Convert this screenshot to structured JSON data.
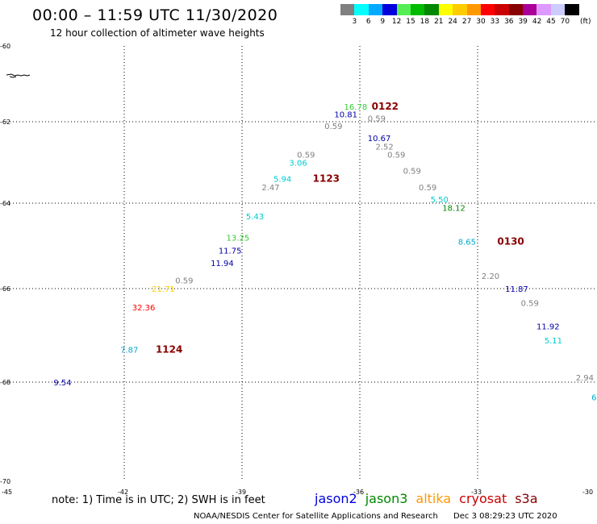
{
  "header": {
    "title": "00:00 – 11:59 UTC 11/30/2020",
    "subtitle": "12 hour collection of altimeter wave heights"
  },
  "legend": {
    "colors": [
      "#808080",
      "#00ffff",
      "#00aaff",
      "#0000dd",
      "#55ee55",
      "#00bb00",
      "#008800",
      "#ffff00",
      "#ffcc00",
      "#ff9900",
      "#ff0000",
      "#cc0000",
      "#880000",
      "#aa0099",
      "#dd99ff",
      "#ccccff",
      "#000000"
    ],
    "ticks": [
      "3",
      "6",
      "9",
      "12",
      "15",
      "18",
      "21",
      "24",
      "27",
      "30",
      "33",
      "36",
      "39",
      "42",
      "45",
      "70"
    ],
    "unit": "(ft)"
  },
  "map": {
    "lon_ticks": [
      "-45",
      "-42",
      "-39",
      "-36",
      "-33",
      "-30"
    ],
    "lat_ticks": [
      "-60",
      "-62",
      "-64",
      "-66",
      "-68",
      "-70"
    ],
    "points": [
      {
        "text": "16.78",
        "color": "#33cc33",
        "lon": -36.4,
        "lat": -61.6
      },
      {
        "text": "0122",
        "color": "#880000",
        "lon": -35.7,
        "lat": -61.6,
        "bold": true
      },
      {
        "text": "10.81",
        "color": "#0000aa",
        "lon": -36.65,
        "lat": -61.8
      },
      {
        "text": "0.59",
        "color": "#808080",
        "lon": -35.8,
        "lat": -61.9
      },
      {
        "text": "0.59",
        "color": "#808080",
        "lon": -36.9,
        "lat": -62.1
      },
      {
        "text": "10.67",
        "color": "#0000aa",
        "lon": -35.8,
        "lat": -62.4
      },
      {
        "text": "2.52",
        "color": "#808080",
        "lon": -35.6,
        "lat": -62.6
      },
      {
        "text": "0.59",
        "color": "#808080",
        "lon": -37.6,
        "lat": -62.8
      },
      {
        "text": "0.59",
        "color": "#808080",
        "lon": -35.3,
        "lat": -62.8
      },
      {
        "text": "3.06",
        "color": "#00cccc",
        "lon": -37.8,
        "lat": -63.0
      },
      {
        "text": "0.59",
        "color": "#808080",
        "lon": -34.9,
        "lat": -63.2
      },
      {
        "text": "5.94",
        "color": "#00cccc",
        "lon": -38.2,
        "lat": -63.4
      },
      {
        "text": "1123",
        "color": "#880000",
        "lon": -37.2,
        "lat": -63.4,
        "bold": true
      },
      {
        "text": "2.47",
        "color": "#808080",
        "lon": -38.5,
        "lat": -63.6
      },
      {
        "text": "0.59",
        "color": "#808080",
        "lon": -34.5,
        "lat": -63.6
      },
      {
        "text": "5.50",
        "color": "#00cccc",
        "lon": -34.2,
        "lat": -63.9
      },
      {
        "text": "18.12",
        "color": "#008800",
        "lon": -33.9,
        "lat": -64.1
      },
      {
        "text": "5.43",
        "color": "#00cccc",
        "lon": -38.9,
        "lat": -64.3
      },
      {
        "text": "13.25",
        "color": "#33cc33",
        "lon": -39.4,
        "lat": -64.8
      },
      {
        "text": "8.65",
        "color": "#00aacc",
        "lon": -33.5,
        "lat": -64.9
      },
      {
        "text": "0130",
        "color": "#880000",
        "lon": -32.5,
        "lat": -64.9,
        "bold": true
      },
      {
        "text": "11.75",
        "color": "#0000aa",
        "lon": -39.6,
        "lat": -65.1
      },
      {
        "text": "11.94",
        "color": "#0000aa",
        "lon": -39.8,
        "lat": -65.4
      },
      {
        "text": "2.20",
        "color": "#808080",
        "lon": -32.9,
        "lat": -65.7
      },
      {
        "text": "0.59",
        "color": "#808080",
        "lon": -40.7,
        "lat": -65.8
      },
      {
        "text": "11.87",
        "color": "#0000aa",
        "lon": -32.3,
        "lat": -66.0
      },
      {
        "text": "21.71",
        "color": "#ffcc00",
        "lon": -41.3,
        "lat": -66.0
      },
      {
        "text": "0.59",
        "color": "#808080",
        "lon": -31.9,
        "lat": -66.3
      },
      {
        "text": "32.36",
        "color": "#ff0000",
        "lon": -41.8,
        "lat": -66.4
      },
      {
        "text": "11.92",
        "color": "#0000aa",
        "lon": -31.5,
        "lat": -66.8
      },
      {
        "text": "5.11",
        "color": "#00cccc",
        "lon": -31.3,
        "lat": -67.1
      },
      {
        "text": "7.87",
        "color": "#00aacc",
        "lon": -42.1,
        "lat": -67.3
      },
      {
        "text": "1124",
        "color": "#880000",
        "lon": -41.2,
        "lat": -67.3,
        "bold": true
      },
      {
        "text": "2.94",
        "color": "#808080",
        "lon": -30.5,
        "lat": -67.9
      },
      {
        "text": "9.54",
        "color": "#0000aa",
        "lon": -43.8,
        "lat": -68.0
      },
      {
        "text": "6.",
        "color": "#00aacc",
        "lon": -30.1,
        "lat": -68.3
      }
    ]
  },
  "footer_note": "note: 1) Time is in UTC; 2) SWH is in feet",
  "satellites": [
    {
      "name": "jason2",
      "color": "#0000dd"
    },
    {
      "name": "jason3",
      "color": "#008800"
    },
    {
      "name": "altika",
      "color": "#ff9900"
    },
    {
      "name": "cryosat",
      "color": "#cc0000"
    },
    {
      "name": "s3a",
      "color": "#880000"
    }
  ],
  "credit": "NOAA/NESDIS Center for Satellite Applications and Research",
  "generated": "Dec  3 08:29:23 UTC 2020"
}
